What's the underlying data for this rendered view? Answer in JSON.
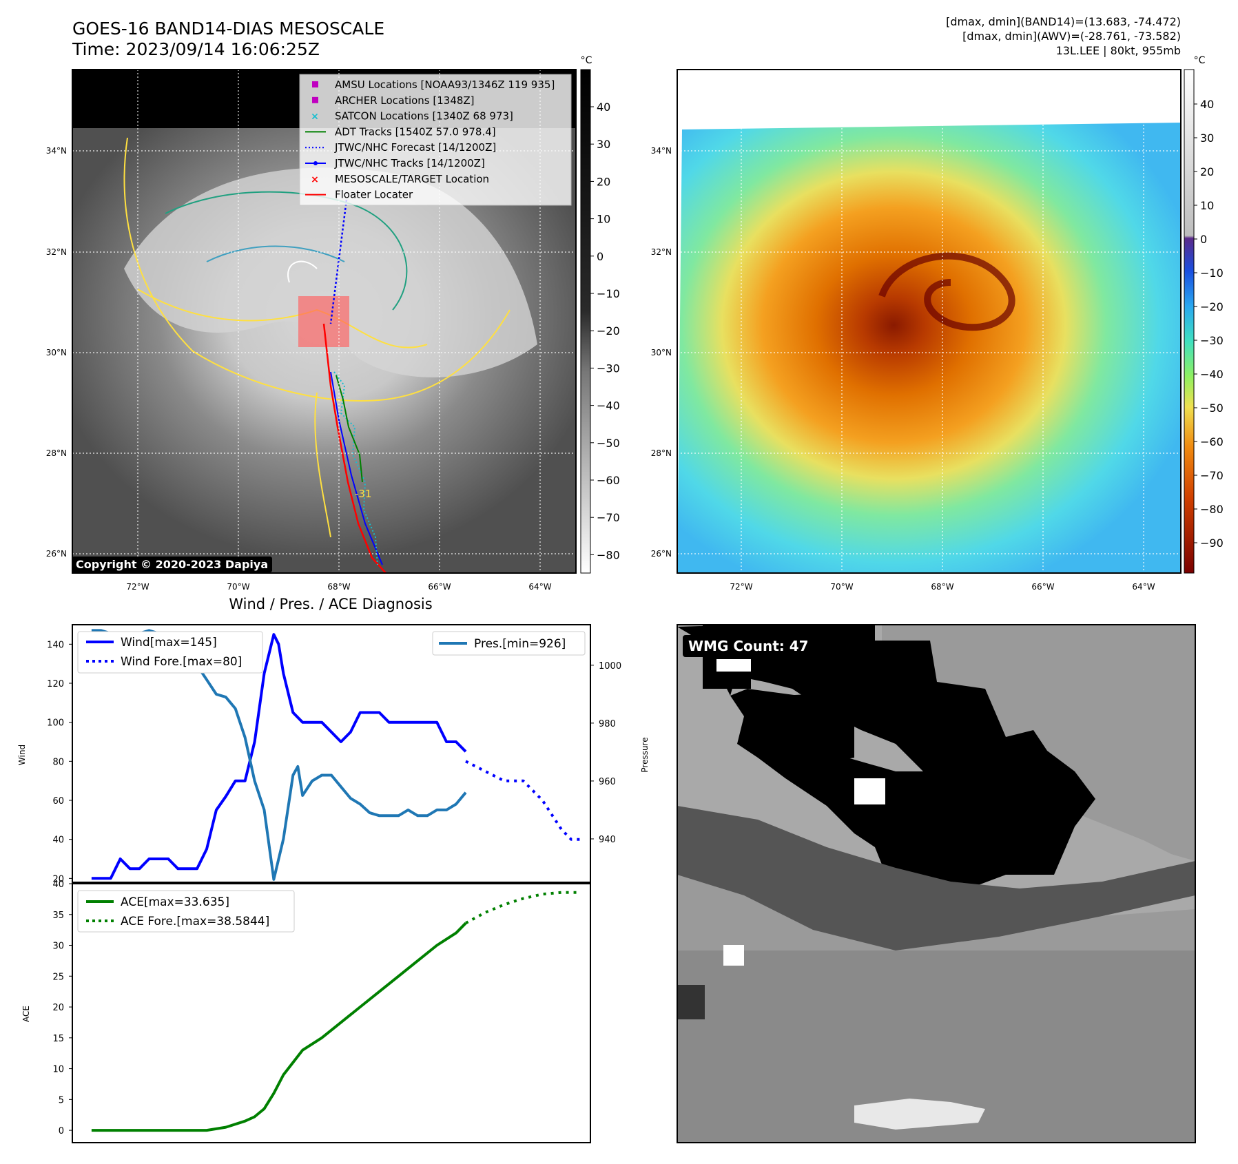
{
  "header": {
    "title_line1": "GOES-16 BAND14-DIAS MESOSCALE",
    "title_line2": "Time: 2023/09/14 16:06:25Z",
    "stats_line1": "[dmax, dmin](BAND14)=(13.683, -74.472)",
    "stats_line2": "[dmax, dmin](AWV)=(-28.761, -73.582)",
    "stats_line3": "13L.LEE | 80kt, 955mb"
  },
  "maps": {
    "lat_labels": [
      "34°N",
      "32°N",
      "30°N",
      "28°N",
      "26°N"
    ],
    "lon_labels": [
      "72°W",
      "70°W",
      "68°W",
      "66°W",
      "64°W"
    ],
    "copyright": "Copyright © 2020-2023 Dapiya",
    "contour_label": "-31",
    "colorbar_unit": "°C",
    "left_colorbar_ticks": [
      "40",
      "30",
      "20",
      "10",
      "0",
      "−10",
      "−20",
      "−30",
      "−40",
      "−50",
      "−60",
      "−70",
      "−80"
    ],
    "right_colorbar_ticks": [
      "40",
      "30",
      "20",
      "10",
      "0",
      "−10",
      "−20",
      "−30",
      "−40",
      "−50",
      "−60",
      "−70",
      "−80",
      "−90"
    ],
    "legend": [
      {
        "marker": "square",
        "color": "#c000c0",
        "label": "AMSU Locations [NOAA93/1346Z 119 935]"
      },
      {
        "marker": "square",
        "color": "#c000c0",
        "label": "ARCHER Locations [1348Z]"
      },
      {
        "marker": "x",
        "color": "#17becf",
        "label": "SATCON Locations [1340Z 68 973]"
      },
      {
        "marker": "line",
        "color": "#008000",
        "label": "ADT Tracks [1540Z 57.0 978.4]"
      },
      {
        "marker": "dotted",
        "color": "#0000ff",
        "label": "JTWC/NHC Forecast [14/1200Z]"
      },
      {
        "marker": "line-dot",
        "color": "#0000ff",
        "label": "JTWC/NHC Tracks [14/1200Z]"
      },
      {
        "marker": "x",
        "color": "#ff0000",
        "label": "MESOSCALE/TARGET Location"
      },
      {
        "marker": "line",
        "color": "#ff0000",
        "label": "Floater Locater"
      }
    ]
  },
  "diagnosis": {
    "title": "Wind / Pres. / ACE Diagnosis",
    "wind_ylabel": "Wind",
    "pres_ylabel": "Pressure",
    "ace_ylabel": "ACE",
    "legend_wind": "Wind[max=145]",
    "legend_wind_fore": "Wind Fore.[max=80]",
    "legend_pres": "Pres.[min=926]",
    "legend_ace": "ACE[max=33.635]",
    "legend_ace_fore": "ACE Fore.[max=38.5844]",
    "wmg_label": "WMG Count: 47"
  },
  "chart_data": [
    {
      "type": "line",
      "title": "Wind / Pres. / ACE Diagnosis",
      "ylabel": "Wind",
      "ylim": [
        18,
        150
      ],
      "y_ticks": [
        20,
        40,
        60,
        80,
        100,
        120,
        140
      ],
      "xlim": [
        -2,
        52
      ],
      "series": [
        {
          "name": "Wind[max=145]",
          "color": "#0000ff",
          "style": "solid",
          "x": [
            0,
            1,
            2,
            3,
            4,
            5,
            6,
            7,
            8,
            9,
            10,
            11,
            12,
            13,
            14,
            15,
            16,
            17,
            18,
            19,
            19.5,
            20,
            21,
            22,
            23,
            24,
            25,
            26,
            27,
            28,
            29,
            30,
            31,
            32,
            33,
            34,
            35,
            36,
            37,
            38,
            39
          ],
          "y": [
            20,
            20,
            20,
            30,
            25,
            25,
            30,
            30,
            30,
            25,
            25,
            25,
            35,
            55,
            62,
            70,
            70,
            90,
            125,
            145,
            140,
            125,
            105,
            100,
            100,
            100,
            95,
            90,
            95,
            105,
            105,
            105,
            100,
            100,
            100,
            100,
            100,
            100,
            90,
            90,
            85
          ]
        },
        {
          "name": "Wind Fore.[max=80]",
          "color": "#0000ff",
          "style": "dotted",
          "x": [
            39,
            41,
            43,
            45,
            47,
            49,
            50,
            51
          ],
          "y": [
            80,
            75,
            70,
            70,
            60,
            45,
            40,
            40
          ]
        }
      ]
    },
    {
      "type": "line",
      "ylabel": "Pressure",
      "ylim": [
        925,
        1014
      ],
      "y_ticks": [
        940,
        960,
        980,
        1000
      ],
      "xlim": [
        -2,
        52
      ],
      "series": [
        {
          "name": "Pres.[min=926]",
          "color": "#1f77b4",
          "style": "solid",
          "x": [
            0,
            1,
            2,
            3,
            4,
            5,
            6,
            7,
            8,
            9,
            10,
            11,
            12,
            13,
            14,
            15,
            16,
            17,
            18,
            19,
            20,
            21,
            21.5,
            22,
            23,
            24,
            25,
            26,
            27,
            28,
            29,
            30,
            31,
            32,
            33,
            34,
            35,
            36,
            37,
            38,
            39
          ],
          "y": [
            1012,
            1012,
            1011,
            1011,
            1011,
            1011,
            1012,
            1011,
            1010,
            1006,
            1005,
            1000,
            995,
            990,
            989,
            985,
            975,
            960,
            950,
            926,
            940,
            962,
            965,
            955,
            960,
            962,
            962,
            958,
            954,
            952,
            949,
            948,
            948,
            948,
            950,
            948,
            948,
            950,
            950,
            952,
            956
          ]
        }
      ]
    },
    {
      "type": "line",
      "ylabel": "ACE",
      "ylim": [
        -2,
        40
      ],
      "y_ticks": [
        0,
        5,
        10,
        15,
        20,
        25,
        30,
        35,
        40
      ],
      "xlim": [
        -2,
        52
      ],
      "series": [
        {
          "name": "ACE[max=33.635]",
          "color": "#008000",
          "style": "solid",
          "x": [
            0,
            2,
            4,
            6,
            8,
            10,
            12,
            14,
            16,
            17,
            18,
            19,
            20,
            21,
            22,
            24,
            26,
            28,
            30,
            32,
            34,
            36,
            38,
            39
          ],
          "y": [
            0,
            0,
            0,
            0,
            0,
            0,
            0,
            0.5,
            1.5,
            2.2,
            3.5,
            6,
            9,
            11,
            13,
            15,
            17.5,
            20,
            22.5,
            25,
            27.5,
            30,
            32,
            33.6
          ]
        },
        {
          "name": "ACE Fore.[max=38.5844]",
          "color": "#008000",
          "style": "dotted",
          "x": [
            39,
            41,
            43,
            45,
            47,
            49,
            51
          ],
          "y": [
            33.6,
            35.3,
            36.6,
            37.6,
            38.3,
            38.58,
            38.58
          ]
        }
      ]
    }
  ]
}
